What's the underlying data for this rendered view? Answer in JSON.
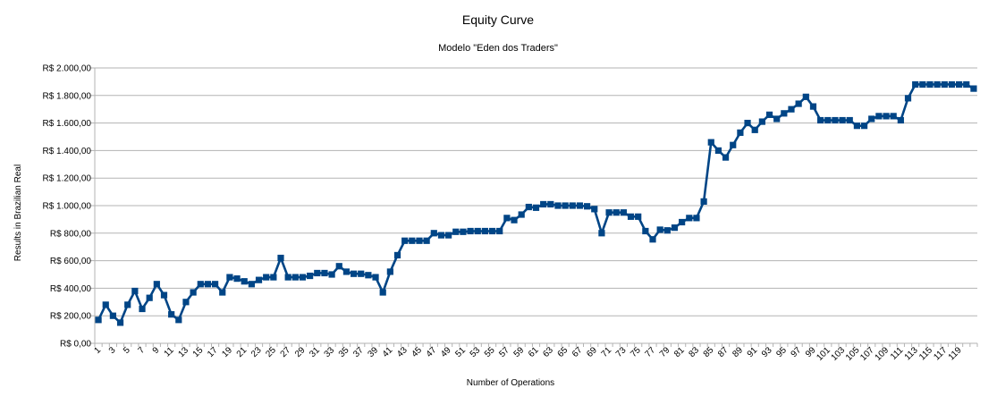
{
  "chart_data": {
    "type": "line",
    "title": "Equity Curve",
    "subtitle": "Modelo \"Eden dos Traders\"",
    "xlabel": "Number of Operations",
    "ylabel": "Results in Brazilian Real",
    "ylim": [
      0,
      2000
    ],
    "y_ticks": [
      {
        "value": 0,
        "label": "R$ 0,00"
      },
      {
        "value": 200,
        "label": "R$ 200,00"
      },
      {
        "value": 400,
        "label": "R$ 400,00"
      },
      {
        "value": 600,
        "label": "R$ 600,00"
      },
      {
        "value": 800,
        "label": "R$ 800,00"
      },
      {
        "value": 1000,
        "label": "R$ 1.000,00"
      },
      {
        "value": 1200,
        "label": "R$ 1.200,00"
      },
      {
        "value": 1400,
        "label": "R$ 1.400,00"
      },
      {
        "value": 1600,
        "label": "R$ 1.600,00"
      },
      {
        "value": 1800,
        "label": "R$ 1.800,00"
      },
      {
        "value": 2000,
        "label": "R$ 2.000,00"
      }
    ],
    "x_tick_labels": [
      "1",
      "3",
      "5",
      "7",
      "9",
      "11",
      "13",
      "15",
      "17",
      "19",
      "21",
      "23",
      "25",
      "27",
      "29",
      "31",
      "33",
      "35",
      "37",
      "39",
      "41",
      "43",
      "45",
      "47",
      "49",
      "51",
      "53",
      "55",
      "57",
      "59",
      "61",
      "63",
      "65",
      "67",
      "69",
      "71",
      "73",
      "75",
      "77",
      "79",
      "81",
      "83",
      "85",
      "87",
      "89",
      "91",
      "93",
      "95",
      "97",
      "99",
      "101",
      "103",
      "105",
      "107",
      "109",
      "111",
      "113",
      "115",
      "117",
      "119"
    ],
    "grid": true,
    "legend": false,
    "series_color": "#004586",
    "marker": "square",
    "series": [
      {
        "name": "",
        "values": [
          170,
          280,
          200,
          150,
          280,
          380,
          250,
          330,
          430,
          350,
          210,
          170,
          300,
          370,
          430,
          430,
          430,
          370,
          480,
          470,
          450,
          430,
          460,
          480,
          480,
          620,
          480,
          480,
          480,
          490,
          510,
          510,
          500,
          560,
          520,
          505,
          505,
          495,
          480,
          370,
          520,
          640,
          745,
          745,
          745,
          745,
          800,
          785,
          785,
          810,
          810,
          815,
          815,
          815,
          815,
          815,
          910,
          895,
          935,
          990,
          985,
          1010,
          1010,
          1000,
          1000,
          1000,
          1000,
          995,
          975,
          800,
          950,
          950,
          950,
          920,
          920,
          815,
          755,
          825,
          820,
          840,
          880,
          910,
          910,
          1030,
          1460,
          1400,
          1350,
          1440,
          1530,
          1600,
          1550,
          1610,
          1660,
          1630,
          1670,
          1700,
          1740,
          1790,
          1720,
          1620,
          1620,
          1620,
          1620,
          1620,
          1580,
          1580,
          1630,
          1650,
          1650,
          1650,
          1620,
          1780,
          1880,
          1880,
          1880,
          1880,
          1880,
          1880,
          1880,
          1880,
          1850
        ]
      }
    ]
  }
}
